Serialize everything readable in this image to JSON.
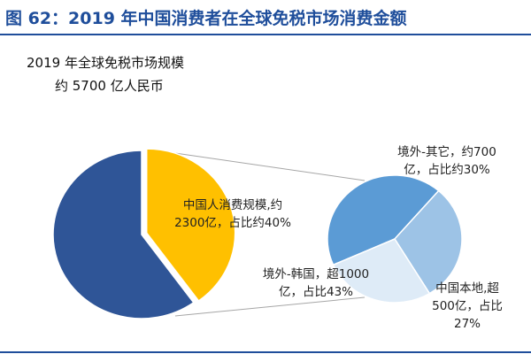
{
  "header": {
    "figure_title": "图 62：2019 年中国消费者在全球免税市场消费金额"
  },
  "chart_data": [
    {
      "type": "pie",
      "title": "2019 年全球免税市场规模",
      "subtitle": "约 5700 亿人民币",
      "total": 5700,
      "slices": [
        {
          "label_lines": [
            "中国人消费规模,约",
            "2300亿，占比约40%"
          ],
          "value": 2300,
          "share": 40,
          "color": "#ffc000"
        },
        {
          "label_lines": [],
          "value": 3400,
          "share": 60,
          "color": "#2f5597"
        }
      ]
    },
    {
      "type": "pie",
      "total": 2300,
      "slices": [
        {
          "label_lines": [
            "境外-韩国，超1000",
            "亿，占比43%"
          ],
          "value": 1000,
          "share": 43,
          "color": "#5b9bd5"
        },
        {
          "label_lines": [
            "境外-其它，约700",
            "亿，占比约30%"
          ],
          "value": 700,
          "share": 30,
          "color": "#9dc3e6"
        },
        {
          "label_lines": [
            "中国本地,超",
            "500亿，占比",
            "27%"
          ],
          "value": 500,
          "share": 27,
          "color": "#deebf7"
        }
      ]
    }
  ]
}
